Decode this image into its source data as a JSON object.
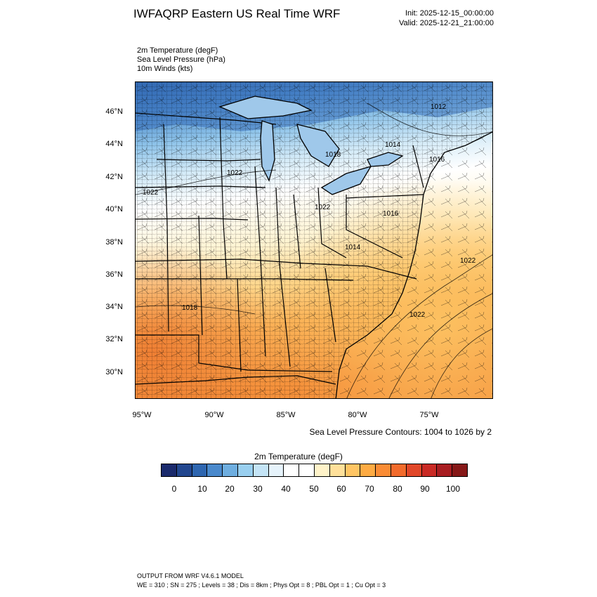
{
  "header": {
    "title": "IWFAQRP Eastern US Real Time WRF",
    "init": "Init: 2025-12-15_00:00:00",
    "valid": "Valid: 2025-12-21_21:00:00"
  },
  "variables": [
    "2m Temperature   (degF)",
    "Sea Level Pressure   (hPa)",
    "10m Winds   (kts)"
  ],
  "map": {
    "lat_labels": [
      "46°N",
      "44°N",
      "42°N",
      "40°N",
      "38°N",
      "36°N",
      "34°N",
      "32°N",
      "30°N"
    ],
    "lon_labels": [
      "95°W",
      "90°W",
      "85°W",
      "80°W",
      "75°W"
    ],
    "contour_labels": [
      "1012",
      "1014",
      "1016",
      "1018",
      "1022",
      "1022",
      "1022",
      "1016",
      "1014",
      "1018",
      "1022",
      "1022"
    ],
    "contour_note": "Sea Level Pressure Contours: 1004 to 1026 by 2"
  },
  "colorbar": {
    "title": "2m Temperature  (degF)",
    "ticks": [
      "0",
      "10",
      "20",
      "30",
      "40",
      "50",
      "60",
      "70",
      "80",
      "90",
      "100"
    ],
    "colors": [
      "#1a2a6c",
      "#22478f",
      "#2e66b0",
      "#4a89cc",
      "#6eaee0",
      "#99cfef",
      "#c4e4f6",
      "#e6f3fb",
      "#ffffff",
      "#ffffff",
      "#fff3c9",
      "#ffe09a",
      "#ffc564",
      "#feab43",
      "#fa8c35",
      "#f26b2c",
      "#e14729",
      "#c92a25",
      "#a81d21",
      "#861818"
    ]
  },
  "footer": {
    "line1": "OUTPUT FROM WRF V4.6.1 MODEL",
    "line2": "WE = 310 ; SN = 275 ; Levels = 38 ; Dis = 8km ; Phys Opt = 8 ; PBL Opt = 1 ; Cu Opt = 3"
  }
}
